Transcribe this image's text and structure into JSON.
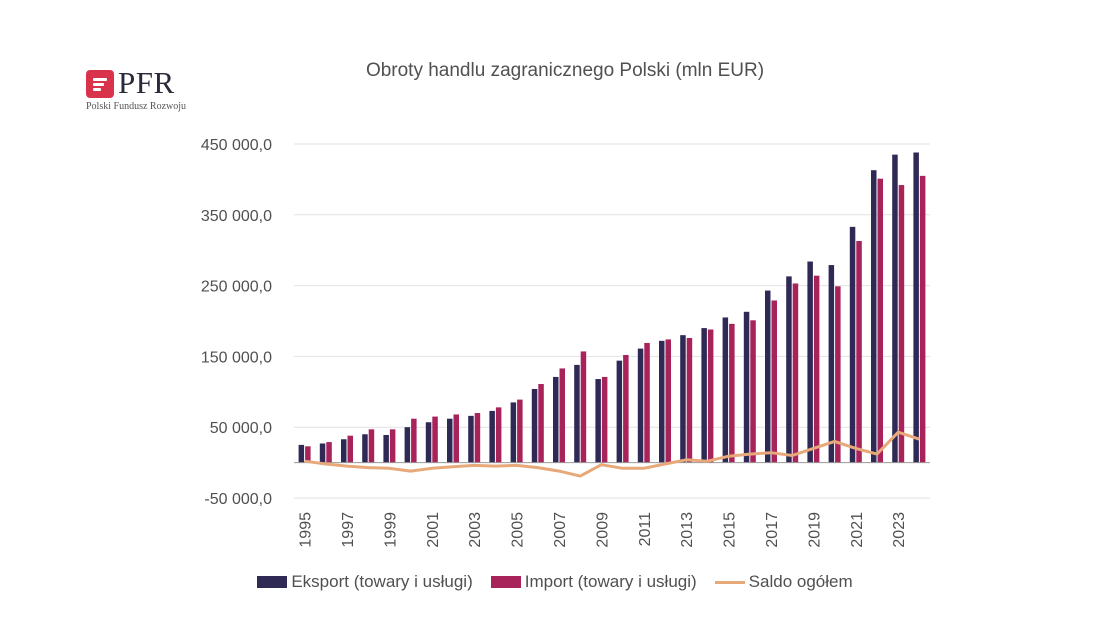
{
  "brand": {
    "name": "PFR",
    "subtitle": "Polski Fundusz Rozwoju"
  },
  "chart_data": {
    "type": "bar",
    "title": "Obroty handlu zagranicznego Polski (mln EUR)",
    "xlabel": "",
    "ylabel": "",
    "ylim": [
      -50000,
      450000
    ],
    "yticks": [
      -50000,
      50000,
      150000,
      250000,
      350000,
      450000
    ],
    "ytick_labels": [
      "-50 000,0",
      "50 000,0",
      "150 000,0",
      "250 000,0",
      "350 000,0",
      "450 000,0"
    ],
    "grid": true,
    "legend_position": "bottom",
    "categories": [
      "1995",
      "1996",
      "1997",
      "1998",
      "1999",
      "2000",
      "2001",
      "2002",
      "2003",
      "2004",
      "2005",
      "2006",
      "2007",
      "2008",
      "2009",
      "2010",
      "2011",
      "2012",
      "2013",
      "2014",
      "2015",
      "2016",
      "2017",
      "2018",
      "2019",
      "2020",
      "2021",
      "2022",
      "2023",
      "2024"
    ],
    "xtick_labels": [
      "1995",
      "1997",
      "1999",
      "2001",
      "2003",
      "2005",
      "2007",
      "2009",
      "2011",
      "2013",
      "2015",
      "2017",
      "2019",
      "2021",
      "2023"
    ],
    "series": [
      {
        "name": "Eksport (towary i usługi)",
        "kind": "bar",
        "color": "#2e2a55",
        "values": [
          25000,
          27000,
          33000,
          40000,
          39000,
          50000,
          57000,
          62000,
          66000,
          73000,
          85000,
          104000,
          121000,
          138000,
          118000,
          144000,
          161000,
          172000,
          180000,
          190000,
          205000,
          213000,
          243000,
          263000,
          284000,
          279000,
          333000,
          413000,
          435000,
          438000
        ]
      },
      {
        "name": "Import (towary i usługi)",
        "kind": "bar",
        "color": "#a8235a",
        "values": [
          23000,
          29000,
          38000,
          47000,
          47000,
          62000,
          65000,
          68000,
          70000,
          78000,
          89000,
          111000,
          133000,
          157000,
          121000,
          152000,
          169000,
          174000,
          176000,
          188000,
          196000,
          201000,
          229000,
          253000,
          264000,
          249000,
          313000,
          401000,
          392000,
          405000
        ]
      },
      {
        "name": "Saldo ogółem",
        "kind": "line",
        "color": "#e8a97a",
        "values": [
          2000,
          -2000,
          -5000,
          -7000,
          -8000,
          -12000,
          -8000,
          -6000,
          -4000,
          -5000,
          -4000,
          -7000,
          -12000,
          -19000,
          -3000,
          -8000,
          -8000,
          -2000,
          4000,
          2000,
          9000,
          12000,
          14000,
          10000,
          20000,
          30000,
          20000,
          12000,
          43000,
          33000
        ]
      }
    ]
  }
}
